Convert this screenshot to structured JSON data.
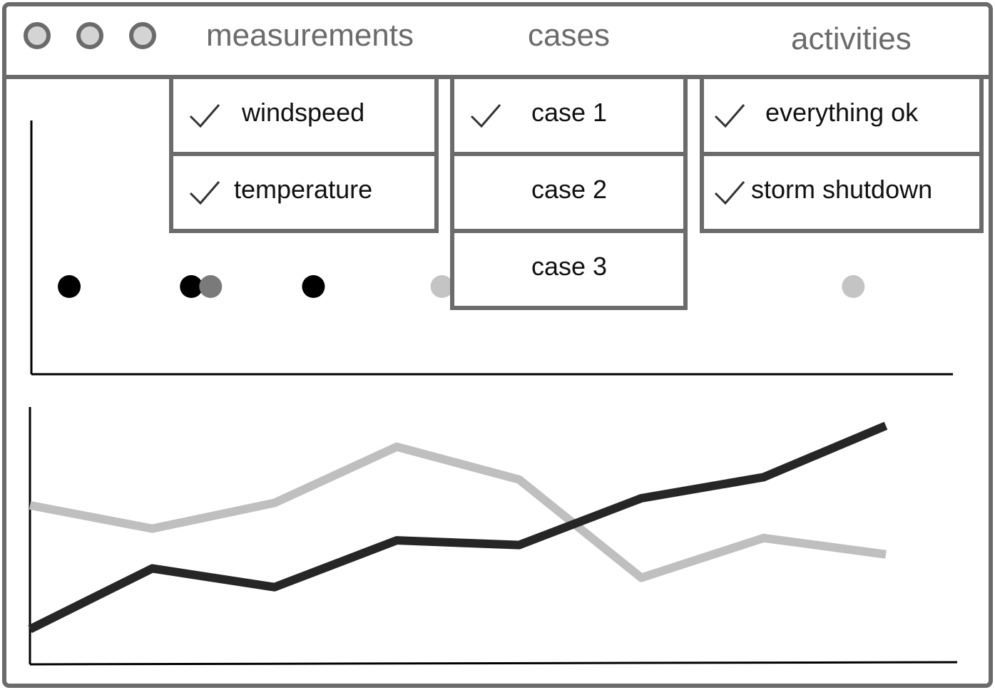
{
  "menubar": {
    "measurements": "measurements",
    "cases": "cases",
    "activities": "activities"
  },
  "measurements_menu": {
    "items": [
      {
        "label": "windspeed",
        "checked": true
      },
      {
        "label": "temperature",
        "checked": true
      }
    ]
  },
  "cases_menu": {
    "items": [
      {
        "label": "case 1",
        "checked": true
      },
      {
        "label": "case 2",
        "checked": false
      },
      {
        "label": "case 3",
        "checked": false
      }
    ]
  },
  "activities_menu": {
    "items": [
      {
        "label": "everything ok",
        "checked": true
      },
      {
        "label": "storm shutdown",
        "checked": true
      }
    ]
  },
  "icons": {
    "window_buttons": [
      "circle-icon",
      "circle-icon",
      "circle-icon"
    ],
    "check": "checkmark-icon"
  },
  "colors": {
    "frame": "#6b6b6b",
    "dark_series": "#262626",
    "light_series": "#bfbfbf",
    "event_black": "#000000",
    "event_mid": "#7a7a7a",
    "event_light": "#c4c4c4"
  },
  "chart_data": [
    {
      "type": "scatter",
      "title": "",
      "xlabel": "",
      "ylabel": "",
      "points": [
        {
          "x": 1.0,
          "color": "#000000"
        },
        {
          "x": 2.9,
          "color": "#000000"
        },
        {
          "x": 3.2,
          "color": "#7a7a7a"
        },
        {
          "x": 4.8,
          "color": "#000000"
        },
        {
          "x": 6.8,
          "color": "#c4c4c4"
        },
        {
          "x": 13.2,
          "color": "#c4c4c4"
        }
      ],
      "xlim": [
        0.5,
        15
      ],
      "grid": false
    },
    {
      "type": "line",
      "title": "",
      "xlabel": "",
      "ylabel": "",
      "x": [
        0,
        1,
        2,
        3,
        4,
        5,
        6,
        7
      ],
      "series": [
        {
          "color": "#bfbfbf",
          "values": [
            0.68,
            0.58,
            0.69,
            0.93,
            0.79,
            0.37,
            0.54,
            0.47
          ]
        },
        {
          "color": "#262626",
          "values": [
            0.15,
            0.41,
            0.33,
            0.53,
            0.51,
            0.71,
            0.8,
            1.02
          ]
        }
      ],
      "xlim": [
        0,
        7
      ],
      "ylim": [
        0,
        1.1
      ],
      "grid": false
    }
  ]
}
